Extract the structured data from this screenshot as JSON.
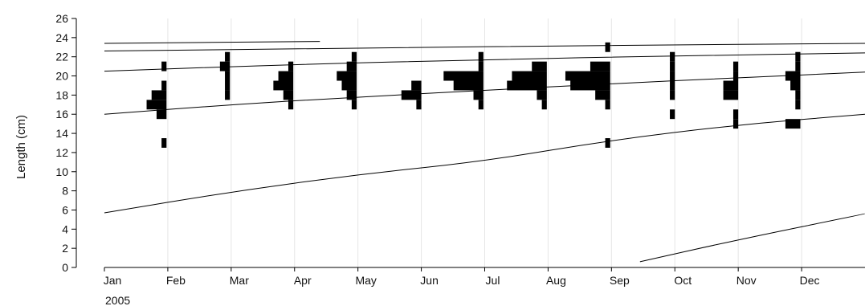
{
  "chart_data": {
    "type": "bar",
    "title": "",
    "xlabel": "",
    "ylabel": "Length (cm)",
    "year_label": "2005",
    "ylim": [
      0,
      26
    ],
    "yticks": [
      "0",
      "2",
      "4",
      "6",
      "8",
      "10",
      "12",
      "14",
      "16",
      "18",
      "20",
      "22",
      "24",
      "26"
    ],
    "xlim": [
      0,
      12
    ],
    "month_ticks": [
      {
        "label": "Jan",
        "x": 0
      },
      {
        "label": "Feb",
        "x": 1
      },
      {
        "label": "Mar",
        "x": 2
      },
      {
        "label": "Apr",
        "x": 3
      },
      {
        "label": "May",
        "x": 4
      },
      {
        "label": "Jun",
        "x": 5
      },
      {
        "label": "Jul",
        "x": 6
      },
      {
        "label": "Aug",
        "x": 7
      },
      {
        "label": "Sep",
        "x": 8
      },
      {
        "label": "Oct",
        "x": 9
      },
      {
        "label": "Nov",
        "x": 10
      },
      {
        "label": "Dec",
        "x": 11
      }
    ],
    "grid": true,
    "growth_curves": [
      {
        "points": [
          [
            0,
            23.4
          ],
          [
            3.4,
            23.6
          ]
        ]
      },
      {
        "points": [
          [
            0,
            22.6
          ],
          [
            4,
            22.9
          ],
          [
            8,
            23.2
          ],
          [
            12,
            23.4
          ]
        ]
      },
      {
        "points": [
          [
            0,
            20.5
          ],
          [
            3,
            21.2
          ],
          [
            6,
            21.7
          ],
          [
            9,
            22.1
          ],
          [
            12,
            22.4
          ]
        ]
      },
      {
        "points": [
          [
            0,
            16.0
          ],
          [
            2,
            17.0
          ],
          [
            4,
            17.8
          ],
          [
            6,
            18.5
          ],
          [
            8,
            19.2
          ],
          [
            10,
            19.8
          ],
          [
            12,
            20.4
          ]
        ]
      },
      {
        "points": [
          [
            0,
            5.7
          ],
          [
            2,
            7.9
          ],
          [
            4,
            9.7
          ],
          [
            6,
            11.1
          ],
          [
            8,
            13.3
          ],
          [
            10,
            14.9
          ],
          [
            12,
            16.0
          ]
        ]
      },
      {
        "points": [
          [
            8.45,
            0.6
          ],
          [
            10,
            2.9
          ],
          [
            12,
            5.6
          ]
        ]
      }
    ],
    "samples": [
      {
        "x": 0.98,
        "bins": [
          [
            13,
            1
          ],
          [
            16,
            2
          ],
          [
            17,
            4
          ],
          [
            18,
            3
          ],
          [
            19,
            1
          ],
          [
            21,
            1
          ]
        ]
      },
      {
        "x": 1.98,
        "bins": [
          [
            18,
            1
          ],
          [
            19,
            1
          ],
          [
            20,
            1
          ],
          [
            21,
            2
          ],
          [
            22,
            1
          ]
        ]
      },
      {
        "x": 2.98,
        "bins": [
          [
            17,
            1
          ],
          [
            18,
            2
          ],
          [
            19,
            4
          ],
          [
            20,
            3
          ],
          [
            21,
            1
          ]
        ]
      },
      {
        "x": 3.98,
        "bins": [
          [
            17,
            1
          ],
          [
            18,
            2
          ],
          [
            19,
            3
          ],
          [
            20,
            4
          ],
          [
            21,
            2
          ],
          [
            22,
            1
          ]
        ]
      },
      {
        "x": 5.0,
        "bins": [
          [
            17,
            1
          ],
          [
            18,
            4
          ],
          [
            19,
            2
          ]
        ]
      },
      {
        "x": 5.98,
        "bins": [
          [
            17,
            1
          ],
          [
            18,
            2
          ],
          [
            19,
            6
          ],
          [
            20,
            8
          ],
          [
            21,
            1
          ],
          [
            22,
            1
          ]
        ]
      },
      {
        "x": 6.98,
        "bins": [
          [
            17,
            1
          ],
          [
            18,
            2
          ],
          [
            19,
            8
          ],
          [
            20,
            7
          ],
          [
            21,
            3
          ]
        ]
      },
      {
        "x": 7.98,
        "bins": [
          [
            13,
            1
          ],
          [
            17,
            1
          ],
          [
            18,
            3
          ],
          [
            19,
            8
          ],
          [
            20,
            9
          ],
          [
            21,
            4
          ],
          [
            23,
            1
          ]
        ]
      },
      {
        "x": 9.0,
        "bins": [
          [
            16,
            1
          ],
          [
            18,
            1
          ],
          [
            19,
            1
          ],
          [
            20,
            1
          ],
          [
            21,
            1
          ],
          [
            22,
            1
          ]
        ]
      },
      {
        "x": 10.0,
        "bins": [
          [
            15,
            1
          ],
          [
            16,
            1
          ],
          [
            18,
            3
          ],
          [
            19,
            3
          ],
          [
            20,
            1
          ],
          [
            21,
            1
          ]
        ]
      },
      {
        "x": 10.98,
        "bins": [
          [
            15,
            3
          ],
          [
            17,
            1
          ],
          [
            18,
            1
          ],
          [
            19,
            2
          ],
          [
            20,
            3
          ],
          [
            21,
            1
          ],
          [
            22,
            1
          ]
        ]
      }
    ],
    "colors": {
      "bars": "#000000",
      "curves": "#000000",
      "grid": "#e6e6e6"
    }
  }
}
